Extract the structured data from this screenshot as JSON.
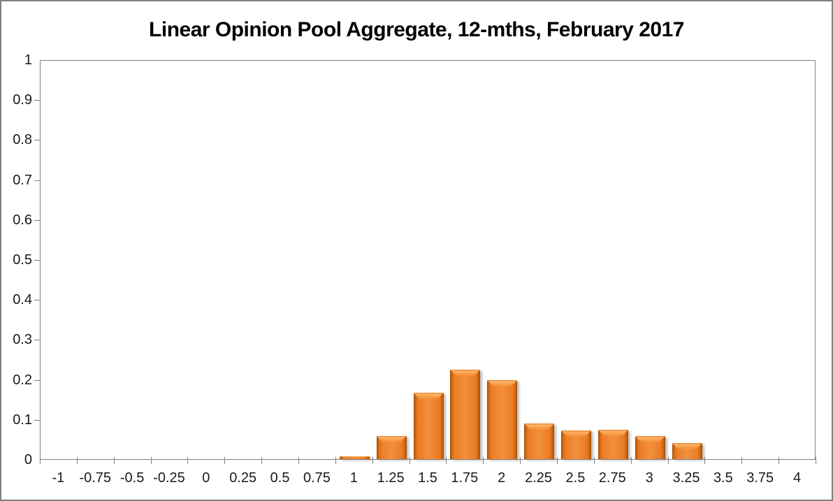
{
  "chart_data": {
    "type": "bar",
    "title": "Linear Opinion Pool Aggregate, 12-mths, February 2017",
    "xlabel": "",
    "ylabel": "",
    "categories": [
      "-1",
      "-0.75",
      "-0.5",
      "-0.25",
      "0",
      "0.25",
      "0.5",
      "0.75",
      "1",
      "1.25",
      "1.5",
      "1.75",
      "2",
      "2.25",
      "2.5",
      "2.75",
      "3",
      "3.25",
      "3.5",
      "3.75",
      "4"
    ],
    "values": [
      0,
      0,
      0,
      0,
      0,
      0,
      0,
      0,
      0.007,
      0.057,
      0.166,
      0.223,
      0.198,
      0.09,
      0.072,
      0.073,
      0.057,
      0.041,
      0,
      0,
      0
    ],
    "ylim": [
      0,
      1
    ],
    "ytick_values": [
      0,
      0.1,
      0.2,
      0.3,
      0.4,
      0.5,
      0.6,
      0.7,
      0.8,
      0.9,
      1
    ],
    "ytick_labels": [
      "0",
      "0.1",
      "0.2",
      "0.3",
      "0.4",
      "0.5",
      "0.6",
      "0.7",
      "0.8",
      "0.9",
      "1"
    ],
    "grid": false,
    "legend": null,
    "colors": {
      "bar_fill": "#ED7D31",
      "bar_highlight": "#FFB266",
      "bar_edge_dark": "#9A4A04",
      "axis_line": "#808080",
      "label_text": "#1A1A1A",
      "outer_border": "#808080",
      "background": "#FFFFFF"
    }
  }
}
